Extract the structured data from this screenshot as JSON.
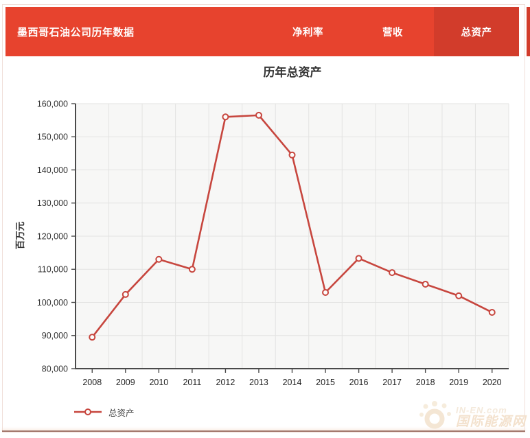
{
  "header": {
    "title": "墨西哥石油公司历年数据",
    "tabs": [
      {
        "label": "净利率",
        "active": false
      },
      {
        "label": "营收",
        "active": false
      },
      {
        "label": "总资产",
        "active": true
      }
    ]
  },
  "chart_data": {
    "type": "line",
    "title": "历年总资产",
    "ylabel": "百万元",
    "xlabel": "",
    "categories": [
      "2008",
      "2009",
      "2010",
      "2011",
      "2012",
      "2013",
      "2014",
      "2015",
      "2016",
      "2017",
      "2018",
      "2019",
      "2020"
    ],
    "series": [
      {
        "name": "总资产",
        "values": [
          89500,
          102400,
          113000,
          110000,
          156000,
          156500,
          144500,
          103000,
          113300,
          109000,
          105500,
          102000,
          97000
        ]
      }
    ],
    "ylim": [
      80000,
      160000
    ],
    "ytick_step": 10000,
    "grid": true,
    "legend": {
      "label": "总资产",
      "position": "bottom-left"
    }
  },
  "watermark": {
    "brand": "IN-EN.com",
    "name": "国际能源网"
  },
  "colors": {
    "header_bg": "#e7432e",
    "active_tab_bg": "#d23c2b",
    "series_line": "#c7463e",
    "marker_fill": "#fcfcfb",
    "plot_bg": "#f7f7f6",
    "gridline": "#e3e3e2",
    "axis": "#4a4a4a",
    "tick_label": "#333333"
  }
}
